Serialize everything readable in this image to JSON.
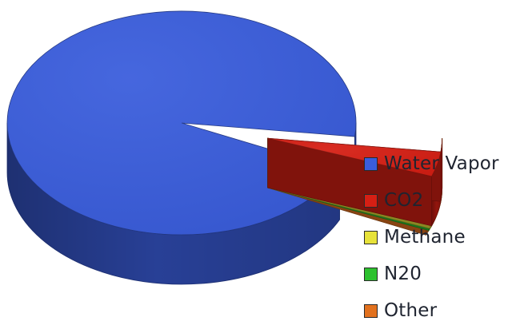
{
  "chart_data": {
    "type": "pie",
    "three_d": true,
    "title": "",
    "legend_position": "right",
    "labels": [
      "Water Vapor",
      "CO2",
      "Methane",
      "N20",
      "Other"
    ],
    "values": [
      95.0,
      3.6,
      0.4,
      0.3,
      0.7
    ],
    "colors": [
      "#3a5ddc",
      "#d61f14",
      "#e7e23a",
      "#2dc12f",
      "#e2711e"
    ],
    "exploded": [
      "CO2",
      "Methane",
      "N20",
      "Other"
    ]
  }
}
